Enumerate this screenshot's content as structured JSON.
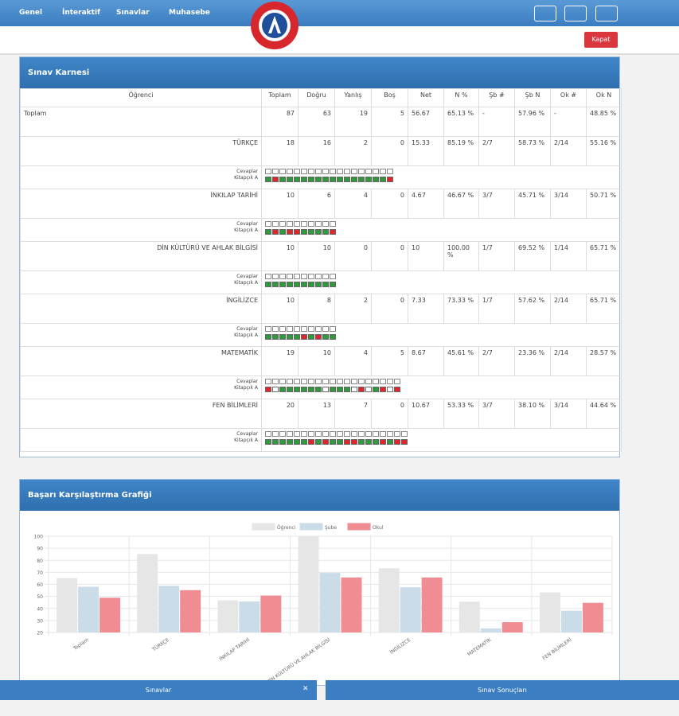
{
  "nav": {
    "items": [
      "Genel",
      "İnteraktif",
      "Sınavlar",
      "Muhasebe"
    ],
    "close": "Kapat"
  },
  "report": {
    "title": "Sınav Karnesi",
    "headers": [
      "Öğrenci",
      "Toplam",
      "Doğru",
      "Yanlış",
      "Boş",
      "Net",
      "N %",
      "Şb #",
      "Şb N",
      "Ok #",
      "Ok N"
    ],
    "answers_label": [
      "Cevaplar",
      "Kitapçık A"
    ],
    "answer_colors": {
      "D": "#2f9a3c",
      "Y": "#e0262b",
      "B": "#ffffff"
    },
    "rows": [
      {
        "name": "Toplam",
        "cells": [
          "87",
          "63",
          "19",
          "5",
          "56.67",
          "65.13 %",
          "-",
          "57.96 %",
          "-",
          "48.85 %"
        ]
      },
      {
        "name": "TÜRKÇE",
        "cells": [
          "18",
          "16",
          "2",
          "0",
          "15.33",
          "85.19 %",
          "2/7",
          "58.73 %",
          "2/14",
          "55.16 %"
        ],
        "answers": [
          "D",
          "Y",
          "D",
          "D",
          "D",
          "D",
          "D",
          "D",
          "D",
          "D",
          "D",
          "D",
          "D",
          "D",
          "D",
          "D",
          "D",
          "Y"
        ]
      },
      {
        "name": "İNKILAP TARİHİ",
        "cells": [
          "10",
          "6",
          "4",
          "0",
          "4.67",
          "46.67 %",
          "3/7",
          "45.71 %",
          "3/14",
          "50.71 %"
        ],
        "answers": [
          "D",
          "Y",
          "D",
          "Y",
          "Y",
          "D",
          "D",
          "D",
          "D",
          "Y"
        ]
      },
      {
        "name": "DİN KÜLTÜRÜ VE AHLAK BİLGİSİ",
        "cells": [
          "10",
          "10",
          "0",
          "0",
          "10",
          "100.00 %",
          "1/7",
          "69.52 %",
          "1/14",
          "65.71 %"
        ],
        "answers": [
          "D",
          "D",
          "D",
          "D",
          "D",
          "D",
          "D",
          "D",
          "D",
          "D"
        ]
      },
      {
        "name": "İNGİLİZCE",
        "cells": [
          "10",
          "8",
          "2",
          "0",
          "7.33",
          "73.33 %",
          "1/7",
          "57.62 %",
          "2/14",
          "65.71 %"
        ],
        "answers": [
          "D",
          "D",
          "D",
          "D",
          "D",
          "Y",
          "D",
          "Y",
          "D",
          "D"
        ]
      },
      {
        "name": "MATEMATİK",
        "cells": [
          "19",
          "10",
          "4",
          "5",
          "8.67",
          "45.61 %",
          "2/7",
          "23.36 %",
          "2/14",
          "28.57 %"
        ],
        "answers": [
          "Y",
          "B",
          "D",
          "D",
          "D",
          "D",
          "D",
          "D",
          "B",
          "D",
          "D",
          "D",
          "B",
          "Y",
          "B",
          "D",
          "Y",
          "B",
          "Y"
        ]
      },
      {
        "name": "FEN BİLİMLERİ",
        "cells": [
          "20",
          "13",
          "7",
          "0",
          "10.67",
          "53.33 %",
          "3/7",
          "38.10 %",
          "3/14",
          "44.64 %"
        ],
        "answers": [
          "D",
          "D",
          "D",
          "D",
          "D",
          "D",
          "Y",
          "D",
          "Y",
          "D",
          "D",
          "Y",
          "Y",
          "D",
          "D",
          "D",
          "Y",
          "D",
          "Y",
          "Y"
        ]
      }
    ]
  },
  "chart_data": {
    "type": "bar",
    "title": "Başarı Karşılaştırma Grafiği",
    "categories": [
      "Toplam",
      "TÜRKÇE",
      "İNKILAP TARİHİ",
      "DİN KÜLTÜRÜ VE AHLAK BİLGİSİ",
      "İNGİLİZCE",
      "MATEMATİK",
      "FEN BİLİMLERİ"
    ],
    "series": [
      {
        "name": "Öğrenci",
        "color": "#e6e6e6",
        "values": [
          65.13,
          85.19,
          46.67,
          100,
          73.33,
          45.61,
          53.33
        ]
      },
      {
        "name": "Şube",
        "color": "#c9dce8",
        "values": [
          57.96,
          58.73,
          45.71,
          69.52,
          57.62,
          23.36,
          38.1
        ]
      },
      {
        "name": "Okul",
        "color": "#ef8d92",
        "values": [
          48.85,
          55.16,
          50.71,
          65.71,
          65.71,
          28.57,
          44.64
        ]
      }
    ],
    "ylim": [
      20,
      100
    ],
    "yticks": [
      20,
      30,
      40,
      50,
      60,
      70,
      80,
      90,
      100
    ],
    "grid": true,
    "legend": "top"
  },
  "footer": {
    "tabs": [
      "Sınavlar",
      "Sınav Sonuçları"
    ]
  }
}
